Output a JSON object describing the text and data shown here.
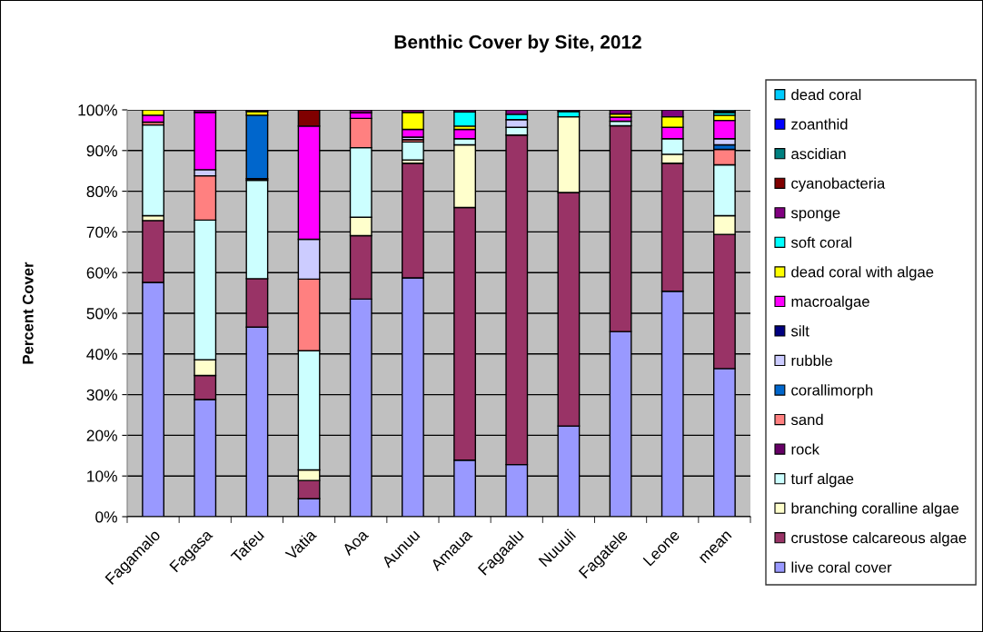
{
  "chart_data": {
    "type": "bar",
    "stacked": true,
    "title": "Benthic Cover by Site, 2012",
    "ylabel": "Percent Cover",
    "categories": [
      "Fagamalo",
      "Fagasa",
      "Tafeu",
      "Vatia",
      "Aoa",
      "Aunuu",
      "Amaua",
      "Fagaalu",
      "Nuuuli",
      "Fagatele",
      "Leone",
      "mean"
    ],
    "ylim": [
      0,
      100
    ],
    "yticks": [
      {
        "value": 0,
        "label": "0%"
      },
      {
        "value": 10,
        "label": "10%"
      },
      {
        "value": 20,
        "label": "20%"
      },
      {
        "value": 30,
        "label": "30%"
      },
      {
        "value": 40,
        "label": "40%"
      },
      {
        "value": 50,
        "label": "50%"
      },
      {
        "value": 60,
        "label": "60%"
      },
      {
        "value": 70,
        "label": "70%"
      },
      {
        "value": 80,
        "label": "80%"
      },
      {
        "value": 90,
        "label": "90%"
      },
      {
        "value": 100,
        "label": "100%"
      }
    ],
    "grid": "y",
    "legend": "right",
    "series": [
      {
        "name": "live coral cover",
        "color": "#9999ff",
        "values": [
          57.6,
          28.8,
          46.6,
          4.4,
          53.5,
          58.7,
          13.9,
          12.8,
          22.3,
          45.5,
          55.4,
          36.4
        ]
      },
      {
        "name": "crustose calcareous algae",
        "color": "#993366",
        "values": [
          15.2,
          5.9,
          11.9,
          4.5,
          15.6,
          28.2,
          62.1,
          81.0,
          57.4,
          50.6,
          31.5,
          33.0
        ]
      },
      {
        "name": "branching coralline algae",
        "color": "#ffffcc",
        "values": [
          1.2,
          3.9,
          null,
          2.6,
          4.5,
          0.8,
          15.4,
          null,
          18.6,
          null,
          2.2,
          4.6
        ]
      },
      {
        "name": "turf algae",
        "color": "#ccffff",
        "values": [
          22.3,
          34.3,
          24.2,
          29.3,
          17.1,
          4.4,
          1.5,
          1.9,
          null,
          1.1,
          3.8,
          12.5
        ]
      },
      {
        "name": "rock",
        "color": "#660066",
        "values": [
          null,
          null,
          0.4,
          null,
          null,
          null,
          null,
          null,
          null,
          null,
          null,
          null
        ]
      },
      {
        "name": "sand",
        "color": "#ff8080",
        "values": [
          0.7,
          10.9,
          null,
          17.6,
          7.2,
          0.6,
          null,
          null,
          null,
          null,
          null,
          3.8
        ]
      },
      {
        "name": "corallimorph",
        "color": "#0066cc",
        "values": [
          null,
          null,
          15.6,
          null,
          null,
          null,
          null,
          null,
          null,
          null,
          null,
          1.1
        ]
      },
      {
        "name": "rubble",
        "color": "#ccccff",
        "values": [
          null,
          1.5,
          null,
          9.8,
          null,
          0.6,
          null,
          1.9,
          null,
          null,
          null,
          1.5
        ]
      },
      {
        "name": "silt",
        "color": "#000080",
        "values": [
          null,
          null,
          null,
          null,
          null,
          null,
          null,
          null,
          null,
          null,
          null,
          null
        ]
      },
      {
        "name": "macroalgae",
        "color": "#ff00ff",
        "values": [
          1.7,
          14.1,
          null,
          27.8,
          1.4,
          1.9,
          2.3,
          null,
          null,
          1.0,
          2.8,
          4.5
        ]
      },
      {
        "name": "dead coral with algae",
        "color": "#ffff00",
        "values": [
          1.3,
          null,
          0.9,
          null,
          null,
          4.2,
          0.8,
          null,
          null,
          0.8,
          2.6,
          1.3
        ]
      },
      {
        "name": "soft coral",
        "color": "#00ffff",
        "values": [
          null,
          null,
          null,
          null,
          null,
          null,
          3.5,
          1.3,
          1.3,
          null,
          null,
          0.6
        ]
      },
      {
        "name": "sponge",
        "color": "#800080",
        "values": [
          null,
          0.6,
          0.4,
          null,
          0.7,
          0.6,
          0.5,
          1.1,
          0.4,
          1.0,
          1.7,
          0.3
        ]
      },
      {
        "name": "cyanobacteria",
        "color": "#800000",
        "values": [
          null,
          null,
          null,
          4.0,
          null,
          null,
          null,
          null,
          null,
          null,
          null,
          null
        ]
      },
      {
        "name": "ascidian",
        "color": "#008080",
        "values": [
          null,
          null,
          null,
          null,
          null,
          null,
          null,
          null,
          null,
          null,
          null,
          null
        ]
      },
      {
        "name": "zoanthid",
        "color": "#0000ff",
        "values": [
          null,
          null,
          null,
          null,
          null,
          null,
          null,
          null,
          null,
          null,
          null,
          null
        ]
      },
      {
        "name": "dead coral",
        "color": "#00ccff",
        "values": [
          null,
          null,
          null,
          null,
          null,
          null,
          null,
          null,
          null,
          null,
          null,
          0.4
        ]
      }
    ]
  }
}
